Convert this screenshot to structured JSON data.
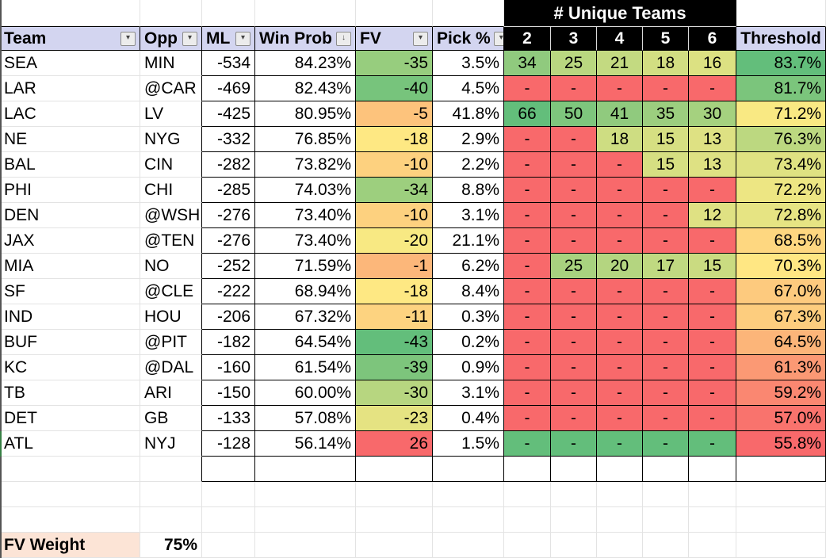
{
  "header": {
    "columns": [
      "Team",
      "Opp",
      "ML",
      "Win Prob",
      "FV",
      "Pick %"
    ],
    "filter_icon": "▾",
    "sort_filter_icon": "↓",
    "unique_teams_banner": "# Unique Teams",
    "unique_cols": [
      "2",
      "3",
      "4",
      "5",
      "6"
    ],
    "threshold": "Threshold"
  },
  "rows": [
    {
      "team": "SEA",
      "opp": "MIN",
      "ml": "-534",
      "win_prob": "84.23%",
      "fv": "-35",
      "fv_color": "#97CD7E",
      "pick": "3.5%",
      "unique": [
        {
          "v": "34",
          "c": "#90CA7E"
        },
        {
          "v": "25",
          "c": "#B9D780"
        },
        {
          "v": "21",
          "c": "#C3DA81"
        },
        {
          "v": "18",
          "c": "#D2DE82"
        },
        {
          "v": "16",
          "c": "#DCE182"
        }
      ],
      "threshold": "83.7%",
      "threshold_color": "#63BE7B"
    },
    {
      "team": "LAR",
      "opp": "@CAR",
      "ml": "-469",
      "win_prob": "82.43%",
      "fv": "-40",
      "fv_color": "#77C47C",
      "pick": "4.5%",
      "unique": [
        {
          "v": "-",
          "c": "#F8696B"
        },
        {
          "v": "-",
          "c": "#F8696B"
        },
        {
          "v": "-",
          "c": "#F8696B"
        },
        {
          "v": "-",
          "c": "#F8696B"
        },
        {
          "v": "-",
          "c": "#F8696B"
        }
      ],
      "threshold": "81.7%",
      "threshold_color": "#7BC57C"
    },
    {
      "team": "LAC",
      "opp": "LV",
      "ml": "-425",
      "win_prob": "80.95%",
      "fv": "-5",
      "fv_color": "#FDC37C",
      "pick": "41.8%",
      "unique": [
        {
          "v": "66",
          "c": "#63BE7B"
        },
        {
          "v": "50",
          "c": "#7EC67D"
        },
        {
          "v": "41",
          "c": "#90CA7E"
        },
        {
          "v": "35",
          "c": "#9CCE7F"
        },
        {
          "v": "30",
          "c": "#A5D17F"
        }
      ],
      "threshold": "71.2%",
      "threshold_color": "#F9E983"
    },
    {
      "team": "NE",
      "opp": "NYG",
      "ml": "-332",
      "win_prob": "76.85%",
      "fv": "-18",
      "fv_color": "#FEE883",
      "pick": "2.9%",
      "unique": [
        {
          "v": "-",
          "c": "#F8696B"
        },
        {
          "v": "-",
          "c": "#F8696B"
        },
        {
          "v": "18",
          "c": "#CEDD82"
        },
        {
          "v": "15",
          "c": "#D6DF82"
        },
        {
          "v": "13",
          "c": "#DEE183"
        }
      ],
      "threshold": "76.3%",
      "threshold_color": "#BCD880"
    },
    {
      "team": "BAL",
      "opp": "CIN",
      "ml": "-282",
      "win_prob": "73.82%",
      "fv": "-10",
      "fv_color": "#FDD17F",
      "pick": "2.2%",
      "unique": [
        {
          "v": "-",
          "c": "#F8696B"
        },
        {
          "v": "-",
          "c": "#F8696B"
        },
        {
          "v": "-",
          "c": "#F8696B"
        },
        {
          "v": "15",
          "c": "#D6DF82"
        },
        {
          "v": "13",
          "c": "#DEE183"
        }
      ],
      "threshold": "73.4%",
      "threshold_color": "#DFE282"
    },
    {
      "team": "PHI",
      "opp": "CHI",
      "ml": "-285",
      "win_prob": "74.03%",
      "fv": "-34",
      "fv_color": "#9DCF7E",
      "pick": "8.8%",
      "unique": [
        {
          "v": "-",
          "c": "#F8696B"
        },
        {
          "v": "-",
          "c": "#F8696B"
        },
        {
          "v": "-",
          "c": "#F8696B"
        },
        {
          "v": "-",
          "c": "#F8696B"
        },
        {
          "v": "-",
          "c": "#F8696B"
        }
      ],
      "threshold": "72.2%",
      "threshold_color": "#EDE683"
    },
    {
      "team": "DEN",
      "opp": "@WSH",
      "ml": "-276",
      "win_prob": "73.40%",
      "fv": "-10",
      "fv_color": "#FDD17F",
      "pick": "3.1%",
      "unique": [
        {
          "v": "-",
          "c": "#F8696B"
        },
        {
          "v": "-",
          "c": "#F8696B"
        },
        {
          "v": "-",
          "c": "#F8696B"
        },
        {
          "v": "-",
          "c": "#F8696B"
        },
        {
          "v": "12",
          "c": "#DFE183"
        }
      ],
      "threshold": "72.8%",
      "threshold_color": "#E6E483"
    },
    {
      "team": "JAX",
      "opp": "@TEN",
      "ml": "-276",
      "win_prob": "73.40%",
      "fv": "-20",
      "fv_color": "#F8E983",
      "pick": "21.1%",
      "unique": [
        {
          "v": "-",
          "c": "#F8696B"
        },
        {
          "v": "-",
          "c": "#F8696B"
        },
        {
          "v": "-",
          "c": "#F8696B"
        },
        {
          "v": "-",
          "c": "#F8696B"
        },
        {
          "v": "-",
          "c": "#F8696B"
        }
      ],
      "threshold": "68.5%",
      "threshold_color": "#FED780"
    },
    {
      "team": "MIA",
      "opp": "NO",
      "ml": "-252",
      "win_prob": "71.59%",
      "fv": "-1",
      "fv_color": "#FCB77A",
      "pick": "6.2%",
      "unique": [
        {
          "v": "-",
          "c": "#F8696B"
        },
        {
          "v": "25",
          "c": "#A8D27F"
        },
        {
          "v": "20",
          "c": "#B4D580"
        },
        {
          "v": "17",
          "c": "#C0D981"
        },
        {
          "v": "15",
          "c": "#CADB81"
        }
      ],
      "threshold": "70.3%",
      "threshold_color": "#FFE783"
    },
    {
      "team": "SF",
      "opp": "@CLE",
      "ml": "-222",
      "win_prob": "68.94%",
      "fv": "-18",
      "fv_color": "#FEE883",
      "pick": "8.4%",
      "unique": [
        {
          "v": "-",
          "c": "#F8696B"
        },
        {
          "v": "-",
          "c": "#F8696B"
        },
        {
          "v": "-",
          "c": "#F8696B"
        },
        {
          "v": "-",
          "c": "#F8696B"
        },
        {
          "v": "-",
          "c": "#F8696B"
        }
      ],
      "threshold": "67.0%",
      "threshold_color": "#FDCA7E"
    },
    {
      "team": "IND",
      "opp": "HOU",
      "ml": "-206",
      "win_prob": "67.32%",
      "fv": "-11",
      "fv_color": "#FDD380",
      "pick": "0.3%",
      "unique": [
        {
          "v": "-",
          "c": "#F8696B"
        },
        {
          "v": "-",
          "c": "#F8696B"
        },
        {
          "v": "-",
          "c": "#F8696B"
        },
        {
          "v": "-",
          "c": "#F8696B"
        },
        {
          "v": "-",
          "c": "#F8696B"
        }
      ],
      "threshold": "67.3%",
      "threshold_color": "#FDCD7E"
    },
    {
      "team": "BUF",
      "opp": "@PIT",
      "ml": "-182",
      "win_prob": "64.54%",
      "fv": "-43",
      "fv_color": "#63BE7B",
      "pick": "0.2%",
      "unique": [
        {
          "v": "-",
          "c": "#F8696B"
        },
        {
          "v": "-",
          "c": "#F8696B"
        },
        {
          "v": "-",
          "c": "#F8696B"
        },
        {
          "v": "-",
          "c": "#F8696B"
        },
        {
          "v": "-",
          "c": "#F8696B"
        }
      ],
      "threshold": "64.5%",
      "threshold_color": "#FCB579"
    },
    {
      "team": "KC",
      "opp": "@DAL",
      "ml": "-160",
      "win_prob": "61.54%",
      "fv": "-39",
      "fv_color": "#7DC57C",
      "pick": "0.9%",
      "unique": [
        {
          "v": "-",
          "c": "#F8696B"
        },
        {
          "v": "-",
          "c": "#F8696B"
        },
        {
          "v": "-",
          "c": "#F8696B"
        },
        {
          "v": "-",
          "c": "#F8696B"
        },
        {
          "v": "-",
          "c": "#F8696B"
        }
      ],
      "threshold": "61.3%",
      "threshold_color": "#FB9974"
    },
    {
      "team": "TB",
      "opp": "ARI",
      "ml": "-150",
      "win_prob": "60.00%",
      "fv": "-30",
      "fv_color": "#B7D680",
      "pick": "3.1%",
      "unique": [
        {
          "v": "-",
          "c": "#F8696B"
        },
        {
          "v": "-",
          "c": "#F8696B"
        },
        {
          "v": "-",
          "c": "#F8696B"
        },
        {
          "v": "-",
          "c": "#F8696B"
        },
        {
          "v": "-",
          "c": "#F8696B"
        }
      ],
      "threshold": "59.2%",
      "threshold_color": "#FA8771"
    },
    {
      "team": "DET",
      "opp": "GB",
      "ml": "-133",
      "win_prob": "57.08%",
      "fv": "-23",
      "fv_color": "#E5E382",
      "pick": "0.4%",
      "unique": [
        {
          "v": "-",
          "c": "#F8696B"
        },
        {
          "v": "-",
          "c": "#F8696B"
        },
        {
          "v": "-",
          "c": "#F8696B"
        },
        {
          "v": "-",
          "c": "#F8696B"
        },
        {
          "v": "-",
          "c": "#F8696B"
        }
      ],
      "threshold": "57.0%",
      "threshold_color": "#F9736D"
    },
    {
      "team": "ATL",
      "opp": "NYJ",
      "ml": "-128",
      "win_prob": "56.14%",
      "fv": "26",
      "fv_color": "#F8696B",
      "pick": "1.5%",
      "unique": [
        {
          "v": "-",
          "c": "#63BE7B"
        },
        {
          "v": "-",
          "c": "#63BE7B"
        },
        {
          "v": "-",
          "c": "#63BE7B"
        },
        {
          "v": "-",
          "c": "#63BE7B"
        },
        {
          "v": "-",
          "c": "#63BE7B"
        }
      ],
      "threshold": "55.8%",
      "threshold_color": "#F8696B"
    }
  ],
  "footer": {
    "fv_weight_label": "FV Weight",
    "fv_weight_value": "75%"
  },
  "colors": {
    "header_bg": "#D3D5F0",
    "banner_bg": "#000000",
    "banner_fg": "#FFFFFF",
    "gridline": "#E3E3E3",
    "table_border": "#000000",
    "dash_red": "#F8696B",
    "atl_dash_green": "#63BE7B",
    "scale_green": "#63BE7B",
    "scale_yellow": "#FFEB84",
    "scale_red": "#F8696B",
    "fv_weight_bg": "#FCE4D6",
    "left_edge_gray": "#555555",
    "left_edge_green": "#378044"
  }
}
